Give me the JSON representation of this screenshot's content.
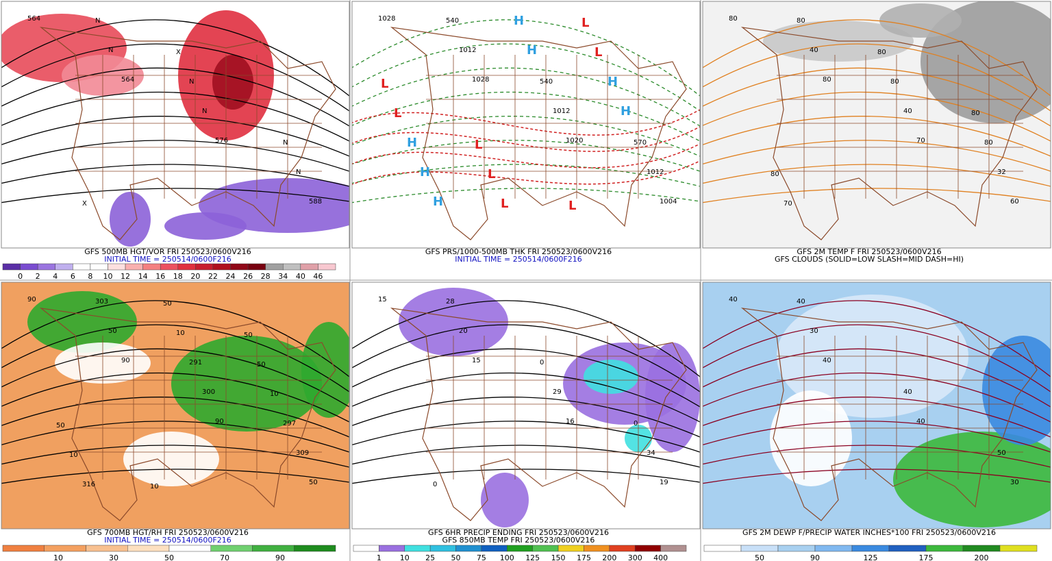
{
  "panels": [
    {
      "caption": [
        "GFS 500MB HGT/VOR FRI 250523/0600V216",
        "INITIAL TIME = 250514/0600F216"
      ],
      "colorbar": [
        "0",
        "2",
        "4",
        "6",
        "8",
        "10",
        "12",
        "14",
        "16",
        "18",
        "20",
        "22",
        "24",
        "26",
        "28",
        "34",
        "40",
        "46"
      ],
      "map_labels": [
        "564",
        "564",
        "576",
        "588",
        "N",
        "N",
        "N",
        "N",
        "N",
        "N",
        "X",
        "X"
      ]
    },
    {
      "caption": [
        "GFS PRS/1000-500MB THK FRI 250523/0600V216",
        "INITIAL TIME = 250514/0600F216"
      ],
      "colorbar": [],
      "map_labels": [
        "1028",
        "1028",
        "1020",
        "1004",
        "1012",
        "1012",
        "1012",
        "540",
        "540",
        "570",
        "H",
        "H",
        "H",
        "H",
        "H",
        "H",
        "H",
        "L",
        "L",
        "L",
        "L",
        "L",
        "L",
        "L",
        "L"
      ]
    },
    {
      "caption": [
        "GFS 2M TEMP F FRI 250523/0600V216",
        "GFS CLOUDS (SOLID=LOW SLASH=MID DASH=HI)"
      ],
      "colorbar": [],
      "map_labels": [
        "80",
        "80",
        "70",
        "60",
        "40",
        "40",
        "32",
        "80",
        "80",
        "80",
        "70",
        "80",
        "80",
        "80"
      ]
    },
    {
      "caption": [
        "GFS 700MB HGT/RH FRI 250523/0600V216",
        "INITIAL TIME = 250514/0600F216"
      ],
      "colorbar": [
        "10",
        "30",
        "50",
        "70",
        "90"
      ],
      "map_labels": [
        "90",
        "90",
        "90",
        "50",
        "50",
        "300",
        "309",
        "303",
        "291",
        "297",
        "316",
        "10",
        "10",
        "10",
        "50",
        "50",
        "50",
        "10",
        "50"
      ]
    },
    {
      "caption": [
        "GFS 6HR PRECIP ENDING FRI 250523/0600V216",
        "GFS 850MB TEMP FRI 250523/0600V216"
      ],
      "colorbar": [
        "1",
        "10",
        "25",
        "50",
        "75",
        "100",
        "125",
        "150",
        "175",
        "200",
        "300",
        "400"
      ],
      "map_labels": [
        "15",
        "15",
        "16",
        "19",
        "20",
        "29",
        "34",
        "28",
        "0",
        "0",
        "0"
      ]
    },
    {
      "caption": [
        "GFS 2M DEWP F/PRECIP WATER INCHES*100 FRI 250523/0600V216"
      ],
      "colorbar": [
        "50",
        "90",
        "125",
        "175",
        "200"
      ],
      "map_labels": [
        "40",
        "40",
        "40",
        "30",
        "30",
        "40",
        "50",
        "40"
      ]
    }
  ]
}
